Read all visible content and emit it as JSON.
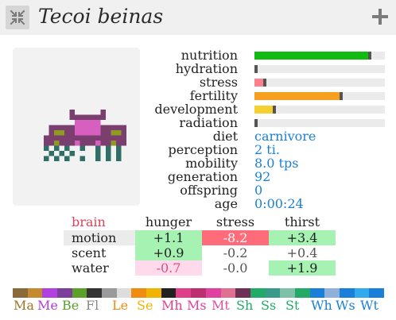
{
  "header": {
    "title": "Tecoi beinas",
    "close_icon": "collapse-arrows-icon",
    "add_icon": "plus-icon"
  },
  "creature": {
    "icon": "pixel-creature-sprite",
    "colors": {
      "shell": "#7a3f6f",
      "body": "#d65fc0",
      "trim": "#8f9a22",
      "legs": "#2f6f66"
    }
  },
  "stats": [
    {
      "label": "nutrition",
      "kind": "bar",
      "fill": 0.87,
      "color": "#11bb11"
    },
    {
      "label": "hydration",
      "kind": "bar",
      "fill": 0.0,
      "color": "#1a7fd8"
    },
    {
      "label": "stress",
      "kind": "bar",
      "fill": 0.07,
      "color": "#ff7f8f"
    },
    {
      "label": "fertility",
      "kind": "bar",
      "fill": 0.65,
      "color": "#f7a01f"
    },
    {
      "label": "development",
      "kind": "bar",
      "fill": 0.14,
      "color": "#f4d030"
    },
    {
      "label": "radiation",
      "kind": "bar",
      "fill": 0.0,
      "color": "#888888"
    },
    {
      "label": "diet",
      "kind": "value",
      "value": "carnivore"
    },
    {
      "label": "perception",
      "kind": "value",
      "value": "2 ti."
    },
    {
      "label": "mobility",
      "kind": "value",
      "value": "8.0 tps"
    },
    {
      "label": "generation",
      "kind": "value",
      "value": "92"
    },
    {
      "label": "offspring",
      "kind": "value",
      "value": "0"
    },
    {
      "label": "age",
      "kind": "value",
      "value": "0:00:24"
    }
  ],
  "senses": {
    "corner_label": "brain",
    "columns": [
      "hunger",
      "stress",
      "thirst"
    ],
    "rows": [
      {
        "label": "motion",
        "cells": [
          {
            "text": "+1.1",
            "bg": "#a6f2b2",
            "fg": "#222222"
          },
          {
            "text": "-8.2",
            "bg": "#ff6b78",
            "fg": "#ffffff"
          },
          {
            "text": "+3.4",
            "bg": "#a6f2b2",
            "fg": "#222222"
          }
        ]
      },
      {
        "label": "scent",
        "cells": [
          {
            "text": "+0.9",
            "bg": "#a6f2b2",
            "fg": "#222222"
          },
          {
            "text": "-0.2",
            "bg": "#ffffff",
            "fg": "#555555"
          },
          {
            "text": "+0.4",
            "bg": "#ffffff",
            "fg": "#555555"
          }
        ]
      },
      {
        "label": "water",
        "cells": [
          {
            "text": "-0.7",
            "bg": "#ffd9ec",
            "fg": "#e0507a"
          },
          {
            "text": "-0.0",
            "bg": "#ffffff",
            "fg": "#555555"
          },
          {
            "text": "+1.9",
            "bg": "#a6f2b2",
            "fg": "#222222"
          }
        ]
      }
    ]
  },
  "sense_keys": [
    {
      "label": "Ma",
      "color": "#a07426"
    },
    {
      "label": "Me",
      "color": "#b040e0"
    },
    {
      "label": "Be",
      "color": "#5aa02a"
    },
    {
      "label": "Fl",
      "color": "#888888"
    },
    {
      "label": "Le",
      "color": "#f08c10"
    },
    {
      "label": "Se",
      "color": "#f0b400"
    },
    {
      "label": "Mh",
      "color": "#e0408a"
    },
    {
      "label": "Ms",
      "color": "#e040a0"
    },
    {
      "label": "Mt",
      "color": "#e050a0"
    },
    {
      "label": "Sh",
      "color": "#22aa66"
    },
    {
      "label": "Ss",
      "color": "#22aa66"
    },
    {
      "label": "St",
      "color": "#22aa66"
    },
    {
      "label": "Wh",
      "color": "#1a7fd8"
    },
    {
      "label": "Ws",
      "color": "#1a7fd8"
    },
    {
      "label": "Wt",
      "color": "#1a7fd8"
    }
  ],
  "palette": [
    "#8a6a3a",
    "#c48a30",
    "#b040e0",
    "#7b3f9a",
    "#5aa02a",
    "#333333",
    "#9a9a9a",
    "#dddddd",
    "#f08c10",
    "#f0b400",
    "#222222",
    "#e0408a",
    "#bd2f6f",
    "#e040a0",
    "#e07090",
    "#6f2f55",
    "#22aa66",
    "#3a9a8a",
    "#7fc0a8",
    "#22aa66",
    "#1a7fd8",
    "#8fb0d8",
    "#1a7fd8",
    "#33aaee",
    "#1a7fd8"
  ]
}
